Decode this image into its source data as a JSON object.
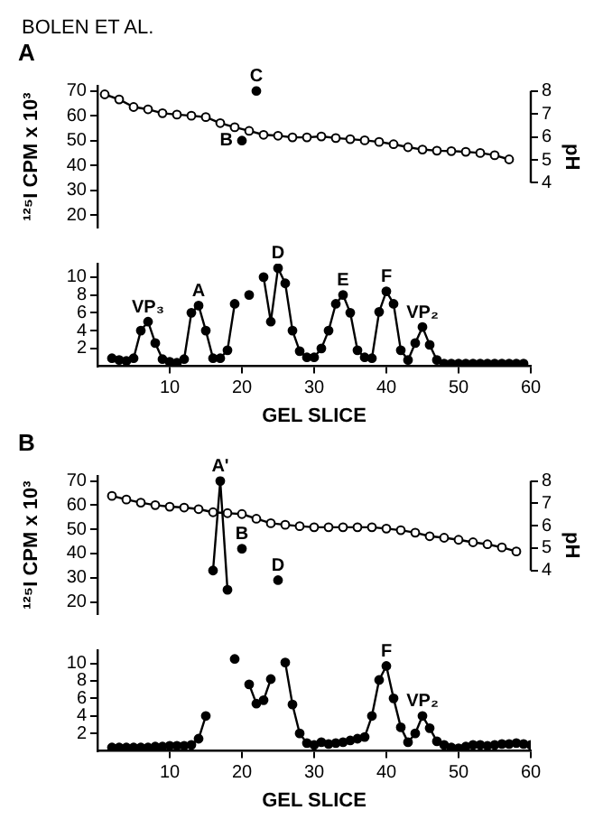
{
  "chart_data": [
    {
      "type": "line",
      "title": "A",
      "ylabel": "¹²⁵I CPM x 10³",
      "y2label": "pH",
      "xlim": [
        0,
        60
      ],
      "ylim": [
        15,
        72
      ],
      "yticks": [
        20,
        30,
        40,
        50,
        60,
        70
      ],
      "y2lim": [
        4,
        8
      ],
      "y2ticks": [
        4,
        5,
        6,
        7,
        8
      ],
      "tick_labels": "y",
      "marker": "circle",
      "legend": false,
      "grid": false,
      "series": [
        {
          "color": "#000000",
          "x": [
            20,
            21,
            22
          ],
          "values": [
            50,
            null,
            70
          ]
        },
        {
          "color": "#000000",
          "axis": "y2",
          "x": [
            1,
            3,
            5,
            7,
            9,
            11,
            13,
            15,
            17,
            19,
            21,
            23,
            25,
            27,
            29,
            31,
            33,
            35,
            37,
            39,
            41,
            43,
            45,
            47,
            49,
            51,
            53,
            55,
            57
          ],
          "values": [
            7.85,
            7.63,
            7.3,
            7.2,
            7.03,
            6.97,
            6.92,
            6.86,
            6.6,
            6.42,
            6.26,
            6.09,
            6.05,
            5.98,
            5.98,
            6.02,
            5.95,
            5.9,
            5.85,
            5.78,
            5.68,
            5.55,
            5.45,
            5.4,
            5.38,
            5.35,
            5.3,
            5.2,
            5.02
          ]
        }
      ],
      "annotations": [
        "BOLEN ET AL.",
        {
          "text": "C",
          "x": 22,
          "y": 70
        },
        {
          "text": "B",
          "x": 20,
          "y": 50
        }
      ]
    },
    {
      "type": "line",
      "xlabel": "GEL SLICE",
      "xlim": [
        0,
        60
      ],
      "xticks": [
        10,
        20,
        30,
        40,
        50,
        60
      ],
      "ylim": [
        0,
        11.5
      ],
      "yticks": [
        2,
        4,
        6,
        8,
        10
      ],
      "marker": "circle",
      "legend": false,
      "grid": false,
      "series": [
        {
          "color": "#000000",
          "x": [
            2,
            3,
            4,
            5,
            6,
            7,
            8,
            9,
            10,
            11,
            12,
            13,
            14,
            15,
            16,
            17,
            18,
            19,
            20,
            21,
            22,
            23,
            24,
            25,
            26,
            27,
            28,
            29,
            30,
            31,
            32,
            33,
            34,
            35,
            36,
            37,
            38,
            39,
            40,
            41,
            42,
            43,
            44,
            45,
            46,
            47,
            48,
            49,
            50,
            51,
            52,
            53,
            54,
            55,
            56,
            57,
            58,
            59
          ],
          "values": [
            0.9,
            0.7,
            0.6,
            0.9,
            4.0,
            5.0,
            2.6,
            0.8,
            0.5,
            0.4,
            0.8,
            6.0,
            6.8,
            4.0,
            0.9,
            0.9,
            1.8,
            7.0,
            null,
            8.0,
            null,
            10.0,
            5.0,
            11.0,
            9.3,
            4.0,
            1.7,
            1.0,
            1.0,
            2.0,
            4.0,
            7.0,
            8.0,
            6.0,
            1.8,
            1.0,
            0.9,
            6.1,
            8.4,
            7.0,
            1.8,
            0.7,
            2.6,
            4.4,
            2.4,
            0.7,
            0.3,
            0.3,
            0.3,
            0.3,
            0.3,
            0.3,
            0.3,
            0.3,
            0.3,
            0.3,
            0.3,
            0.3
          ]
        }
      ],
      "annotations": [
        {
          "text": "D",
          "x": 25,
          "y": 11
        },
        {
          "text": "VP₃",
          "x": 7,
          "y": 5.0
        },
        {
          "text": "A",
          "x": 14,
          "y": 6.8
        },
        {
          "text": "E",
          "x": 34,
          "y": 8.0
        },
        {
          "text": "F",
          "x": 40,
          "y": 8.4
        },
        {
          "text": "VP₂",
          "x": 45,
          "y": 4.4
        }
      ]
    },
    {
      "type": "line",
      "title": "B",
      "ylabel": "¹²⁵I CPM x 10³",
      "y2label": "pH",
      "xlim": [
        0,
        60
      ],
      "ylim": [
        15,
        72
      ],
      "yticks": [
        20,
        30,
        40,
        50,
        60,
        70
      ],
      "y2lim": [
        4,
        8
      ],
      "y2ticks": [
        4,
        5,
        6,
        7,
        8
      ],
      "tick_labels": "y",
      "marker": "circle",
      "legend": false,
      "grid": false,
      "series": [
        {
          "color": "#000000",
          "x": [
            16,
            17,
            18,
            19,
            20,
            21,
            25
          ],
          "values": [
            33,
            70,
            25,
            null,
            42,
            null,
            29
          ]
        },
        {
          "color": "#000000",
          "axis": "y2",
          "x": [
            2,
            4,
            6,
            8,
            10,
            12,
            14,
            16,
            18,
            20,
            22,
            24,
            26,
            28,
            30,
            32,
            34,
            36,
            38,
            40,
            42,
            44,
            46,
            48,
            50,
            52,
            54,
            56,
            58
          ],
          "values": [
            7.33,
            7.17,
            7.03,
            6.92,
            6.85,
            6.81,
            6.74,
            6.6,
            6.56,
            6.52,
            6.31,
            6.11,
            6.04,
            5.98,
            5.93,
            5.93,
            5.93,
            5.93,
            5.93,
            5.87,
            5.8,
            5.69,
            5.53,
            5.46,
            5.37,
            5.26,
            5.17,
            5.03,
            4.85
          ]
        }
      ],
      "annotations": [
        {
          "text": "A'",
          "x": 17,
          "y": 70
        },
        {
          "text": "B",
          "x": 20,
          "y": 42
        },
        {
          "text": "D",
          "x": 25,
          "y": 29
        }
      ]
    },
    {
      "type": "line",
      "xlabel": "GEL SLICE",
      "xlim": [
        0,
        60
      ],
      "xticks": [
        10,
        20,
        30,
        40,
        50,
        60
      ],
      "ylim": [
        0,
        11.5
      ],
      "yticks": [
        2,
        4,
        6,
        8,
        10
      ],
      "marker": "circle",
      "legend": false,
      "grid": false,
      "series": [
        {
          "color": "#000000",
          "x": [
            2,
            3,
            4,
            5,
            6,
            7,
            8,
            9,
            10,
            11,
            12,
            13,
            14,
            15,
            16,
            17,
            18,
            19,
            20,
            21,
            22,
            23,
            24,
            25,
            26,
            27,
            28,
            29,
            30,
            31,
            32,
            33,
            34,
            35,
            36,
            37,
            38,
            39,
            40,
            41,
            42,
            43,
            44,
            45,
            46,
            47,
            48,
            49,
            50,
            51,
            52,
            53,
            54,
            55,
            56,
            57,
            58,
            59,
            60
          ],
          "values": [
            0.4,
            0.4,
            0.4,
            0.4,
            0.4,
            0.4,
            0.5,
            0.5,
            0.6,
            0.6,
            0.6,
            0.7,
            1.4,
            4.0,
            null,
            null,
            null,
            10.5,
            null,
            7.6,
            5.4,
            5.8,
            8.2,
            null,
            10.1,
            5.3,
            2.0,
            0.9,
            0.7,
            1.0,
            0.8,
            0.9,
            1.0,
            1.2,
            1.4,
            1.6,
            4.0,
            8.1,
            9.7,
            6.0,
            2.7,
            1.0,
            2.0,
            4.0,
            2.6,
            1.1,
            0.7,
            0.4,
            0.3,
            0.5,
            0.7,
            0.7,
            0.6,
            0.7,
            0.8,
            0.8,
            0.9,
            0.8,
            0.7
          ]
        }
      ],
      "annotations": [
        {
          "text": "F",
          "x": 40,
          "y": 9.7
        },
        {
          "text": "VP₂",
          "x": 45,
          "y": 4.0
        }
      ]
    }
  ]
}
